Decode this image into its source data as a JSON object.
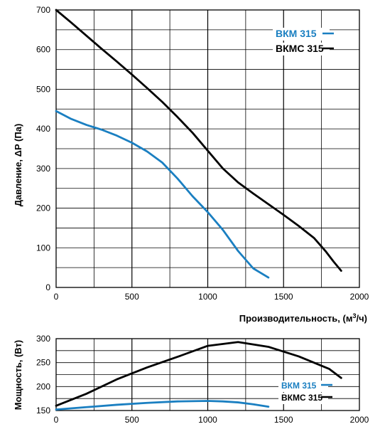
{
  "colors": {
    "bkm": "#1a7fc1",
    "bkmc": "#000000",
    "grid": "#000000"
  },
  "chart_data": [
    {
      "type": "line",
      "ylabel": "Давление, ΔP (Па)",
      "xlabel_main": "Производительность, (м",
      "xlabel_sup": "3",
      "xlabel_tail": "/ч)",
      "xlim": [
        0,
        2000
      ],
      "ylim": [
        0,
        700
      ],
      "x_ticks": [
        "0",
        "500",
        "1000",
        "1500",
        "2000"
      ],
      "y_ticks": [
        "0",
        "100",
        "200",
        "300",
        "400",
        "500",
        "600",
        "700"
      ],
      "grid": true,
      "legend_position": "top-right",
      "series": [
        {
          "name": "ВКМ 315",
          "color": "#1a7fc1",
          "x": [
            0,
            100,
            200,
            300,
            400,
            500,
            600,
            700,
            800,
            900,
            1000,
            1100,
            1200,
            1300,
            1400
          ],
          "y": [
            445,
            425,
            410,
            398,
            383,
            365,
            343,
            315,
            275,
            230,
            190,
            145,
            92,
            48,
            25
          ]
        },
        {
          "name": "ВКМС 315",
          "color": "#000000",
          "x": [
            0,
            100,
            200,
            300,
            400,
            500,
            600,
            700,
            800,
            900,
            1000,
            1100,
            1200,
            1300,
            1400,
            1500,
            1600,
            1700,
            1780,
            1830,
            1880
          ],
          "y": [
            700,
            668,
            635,
            602,
            570,
            537,
            503,
            468,
            430,
            390,
            345,
            300,
            265,
            237,
            210,
            183,
            155,
            125,
            90,
            65,
            42
          ]
        }
      ]
    },
    {
      "type": "line",
      "ylabel": "Мощность, (Вт)",
      "xlim": [
        0,
        2000
      ],
      "ylim": [
        150,
        300
      ],
      "x_ticks": [
        "0",
        "500",
        "1000",
        "1500",
        "2000"
      ],
      "y_ticks": [
        "150",
        "200",
        "250",
        "300"
      ],
      "grid": true,
      "legend_position": "bottom-right",
      "series": [
        {
          "name": "ВКМ 315",
          "color": "#1a7fc1",
          "x": [
            0,
            200,
            400,
            600,
            800,
            1000,
            1100,
            1200,
            1300,
            1400
          ],
          "y": [
            152,
            157,
            162,
            166,
            169,
            170,
            169,
            167,
            163,
            158
          ]
        },
        {
          "name": "ВКМС 315",
          "color": "#000000",
          "x": [
            0,
            200,
            400,
            600,
            800,
            1000,
            1200,
            1400,
            1600,
            1700,
            1800,
            1880
          ],
          "y": [
            160,
            185,
            215,
            240,
            262,
            285,
            293,
            283,
            263,
            250,
            237,
            218
          ]
        }
      ]
    }
  ]
}
